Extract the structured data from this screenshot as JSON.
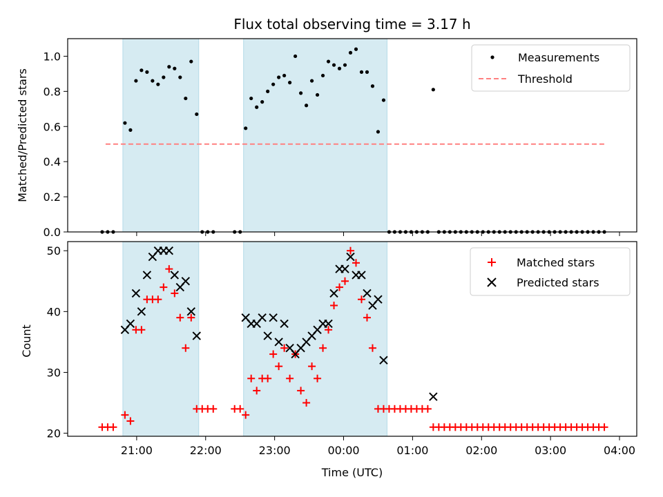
{
  "chart_data": [
    {
      "type": "scatter",
      "title": "Flux total observing time = 3.17 h",
      "xlabel": "",
      "ylabel": "Matched/Predicted stars",
      "ylim": [
        0.0,
        1.1
      ],
      "yticks": [
        "0.0",
        "0.2",
        "0.4",
        "0.6",
        "0.8",
        "1.0"
      ],
      "xlim_hours": [
        20.0,
        28.25
      ],
      "grid": false,
      "legend_placement": "upper-right",
      "shaded_intervals": [
        [
          20.8,
          21.9
        ],
        [
          22.55,
          24.63
        ]
      ],
      "shade_color": "#add8e6",
      "threshold": {
        "name": "Threshold",
        "value": 0.5,
        "x_range": [
          20.55,
          27.8
        ],
        "color": "#ff8080"
      },
      "series": [
        {
          "name": "Measurements",
          "color": "#000000",
          "x": [
            20.5,
            20.58,
            20.66,
            20.83,
            20.91,
            20.99,
            21.07,
            21.15,
            21.23,
            21.31,
            21.39,
            21.47,
            21.55,
            21.63,
            21.71,
            21.79,
            21.87,
            21.95,
            22.03,
            22.11,
            22.42,
            22.5,
            22.58,
            22.66,
            22.74,
            22.82,
            22.9,
            22.98,
            23.06,
            23.14,
            23.22,
            23.3,
            23.38,
            23.46,
            23.54,
            23.62,
            23.7,
            23.78,
            23.86,
            23.94,
            24.02,
            24.1,
            24.18,
            24.26,
            24.34,
            24.42,
            24.5,
            24.58,
            24.66,
            24.74,
            24.82,
            24.9,
            24.98,
            25.06,
            25.14,
            25.22,
            25.3,
            25.38,
            25.46,
            25.54,
            25.62,
            25.7,
            25.78,
            25.86,
            25.94,
            26.02,
            26.1,
            26.18,
            26.26,
            26.34,
            26.42,
            26.5,
            26.58,
            26.66,
            26.74,
            26.82,
            26.9,
            26.98,
            27.06,
            27.14,
            27.22,
            27.3,
            27.38,
            27.46,
            27.54,
            27.62,
            27.7,
            27.78
          ],
          "y": [
            0,
            0,
            0,
            0.62,
            0.58,
            0.86,
            0.92,
            0.91,
            0.86,
            0.84,
            0.88,
            0.94,
            0.93,
            0.88,
            0.76,
            0.97,
            0.67,
            0,
            0,
            0,
            0,
            0,
            0.59,
            0.76,
            0.71,
            0.74,
            0.8,
            0.84,
            0.88,
            0.89,
            0.85,
            1.0,
            0.79,
            0.72,
            0.86,
            0.78,
            0.89,
            0.97,
            0.95,
            0.93,
            0.95,
            1.02,
            1.04,
            0.91,
            0.91,
            0.83,
            0.57,
            0.75,
            0,
            0,
            0,
            0,
            0,
            0,
            0,
            0,
            0.81,
            0,
            0,
            0,
            0,
            0,
            0,
            0,
            0,
            0,
            0,
            0,
            0,
            0,
            0,
            0,
            0,
            0,
            0,
            0,
            0,
            0,
            0,
            0,
            0,
            0,
            0,
            0,
            0,
            0,
            0,
            0
          ]
        }
      ]
    },
    {
      "type": "scatter",
      "title": "",
      "xlabel": "Time (UTC)",
      "ylabel": "Count",
      "ylim": [
        19.5,
        51.5
      ],
      "yticks": [
        "20",
        "30",
        "40",
        "50"
      ],
      "xlim_hours": [
        20.0,
        28.25
      ],
      "xticks": [
        "21:00",
        "22:00",
        "23:00",
        "00:00",
        "01:00",
        "02:00",
        "03:00",
        "04:00"
      ],
      "grid": false,
      "legend_placement": "upper-right",
      "shaded_intervals": [
        [
          20.8,
          21.9
        ],
        [
          22.55,
          24.63
        ]
      ],
      "shade_color": "#add8e6",
      "series": [
        {
          "name": "Matched stars",
          "marker": "plus",
          "color": "#ff0000",
          "x": [
            20.5,
            20.58,
            20.66,
            20.83,
            20.91,
            20.99,
            21.07,
            21.15,
            21.23,
            21.31,
            21.39,
            21.47,
            21.55,
            21.63,
            21.71,
            21.79,
            21.87,
            21.95,
            22.03,
            22.11,
            22.42,
            22.5,
            22.58,
            22.66,
            22.74,
            22.82,
            22.9,
            22.98,
            23.06,
            23.14,
            23.22,
            23.3,
            23.38,
            23.46,
            23.54,
            23.62,
            23.7,
            23.78,
            23.86,
            23.94,
            24.02,
            24.1,
            24.18,
            24.26,
            24.34,
            24.42,
            24.5,
            24.58,
            24.66,
            24.74,
            24.82,
            24.9,
            24.98,
            25.06,
            25.14,
            25.22,
            25.3,
            25.38,
            25.46,
            25.54,
            25.62,
            25.7,
            25.78,
            25.86,
            25.94,
            26.02,
            26.1,
            26.18,
            26.26,
            26.34,
            26.42,
            26.5,
            26.58,
            26.66,
            26.74,
            26.82,
            26.9,
            26.98,
            27.06,
            27.14,
            27.22,
            27.3,
            27.38,
            27.46,
            27.54,
            27.62,
            27.7,
            27.78
          ],
          "y": [
            21,
            21,
            21,
            23,
            22,
            37,
            37,
            42,
            42,
            42,
            44,
            47,
            43,
            39,
            34,
            39,
            24,
            24,
            24,
            24,
            24,
            24,
            23,
            29,
            27,
            29,
            29,
            33,
            31,
            34,
            29,
            33,
            27,
            25,
            31,
            29,
            34,
            37,
            41,
            44,
            45,
            50,
            48,
            42,
            39,
            34,
            24,
            24,
            24,
            24,
            24,
            24,
            24,
            24,
            24,
            24,
            21,
            21,
            21,
            21,
            21,
            21,
            21,
            21,
            21,
            21,
            21,
            21,
            21,
            21,
            21,
            21,
            21,
            21,
            21,
            21,
            21,
            21,
            21,
            21,
            21,
            21,
            21,
            21,
            21,
            21,
            21,
            21
          ]
        },
        {
          "name": "Predicted stars",
          "marker": "x",
          "color": "#000000",
          "x": [
            20.83,
            20.91,
            20.99,
            21.07,
            21.15,
            21.23,
            21.31,
            21.39,
            21.47,
            21.55,
            21.63,
            21.71,
            21.79,
            21.87,
            22.58,
            22.66,
            22.74,
            22.82,
            22.9,
            22.98,
            23.06,
            23.14,
            23.22,
            23.3,
            23.38,
            23.46,
            23.54,
            23.62,
            23.7,
            23.78,
            23.86,
            23.94,
            24.02,
            24.1,
            24.18,
            24.26,
            24.34,
            24.42,
            24.5,
            24.58,
            25.3
          ],
          "y": [
            37,
            38,
            43,
            40,
            46,
            49,
            50,
            50,
            50,
            46,
            44,
            45,
            40,
            36,
            39,
            38,
            38,
            39,
            36,
            39,
            35,
            38,
            34,
            33,
            34,
            35,
            36,
            37,
            38,
            38,
            43,
            47,
            47,
            49,
            46,
            46,
            43,
            41,
            42,
            32,
            26
          ]
        }
      ]
    }
  ]
}
